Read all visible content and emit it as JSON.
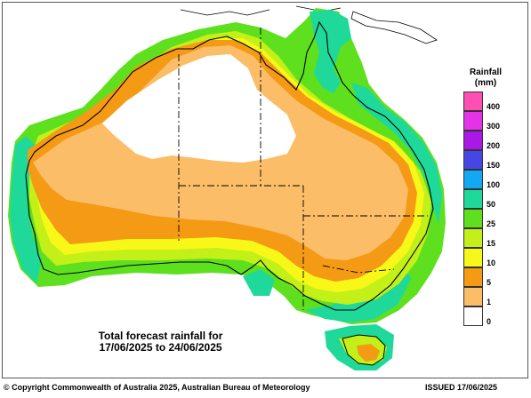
{
  "legend": {
    "title_line1": "Rainfall",
    "title_line2": "(mm)",
    "items": [
      {
        "label": "400",
        "color": "#ff4fb4"
      },
      {
        "label": "300",
        "color": "#e632e6"
      },
      {
        "label": "200",
        "color": "#aa18e6"
      },
      {
        "label": "150",
        "color": "#4646e6"
      },
      {
        "label": "100",
        "color": "#12a8f2"
      },
      {
        "label": "50",
        "color": "#1ed99a"
      },
      {
        "label": "25",
        "color": "#5fe01e"
      },
      {
        "label": "15",
        "color": "#c2f018"
      },
      {
        "label": "10",
        "color": "#f8f818"
      },
      {
        "label": "5",
        "color": "#f49a14"
      },
      {
        "label": "1",
        "color": "#fcbd68"
      },
      {
        "label": "0",
        "color": "#ffffff"
      }
    ]
  },
  "map": {
    "title_line1": "Total forecast rainfall for",
    "title_line2": "17/06/2025 to 24/06/2025"
  },
  "footer": {
    "copyright": "© Copyright Commonwealth of Australia 2025, Australian Bureau of Meteorology",
    "issued": "ISSUED 17/06/2025"
  }
}
